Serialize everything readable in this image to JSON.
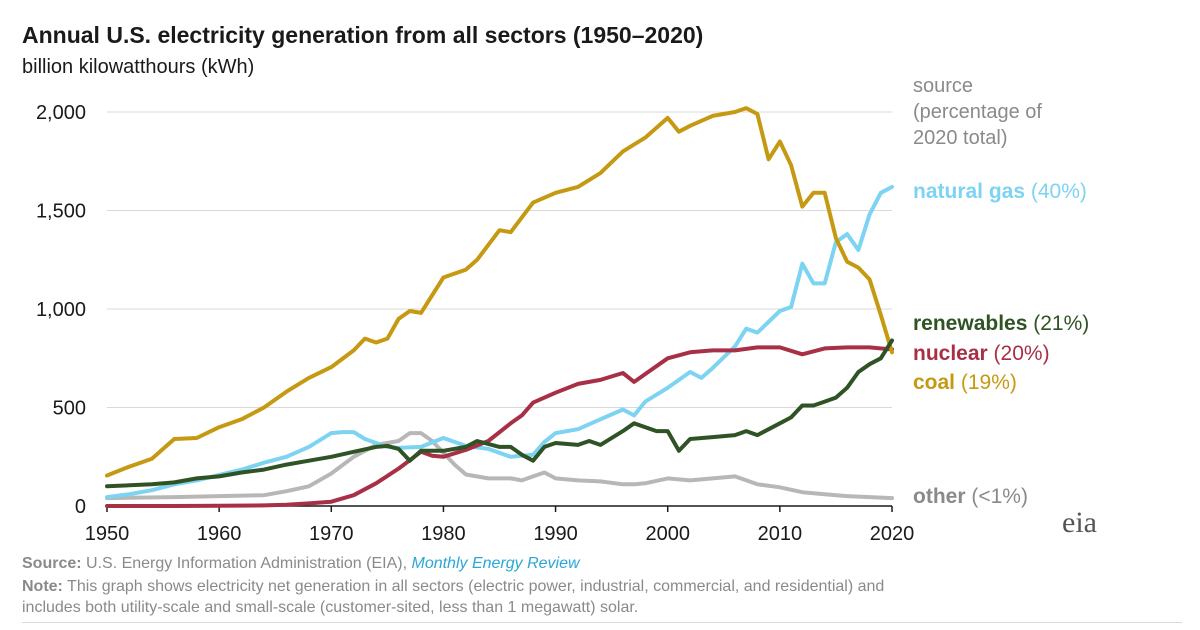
{
  "title": "Annual U.S. electricity generation from all sectors (1950–2020)",
  "subtitle": "billion kilowatthours (kWh)",
  "legend_header": [
    "source",
    "(percentage of",
    "2020 total)"
  ],
  "footer": {
    "source_label": "Source:",
    "source_text": " U.S. Energy Information Administration (EIA), ",
    "source_link": "Monthly Energy Review",
    "note_label": "Note:",
    "note_text_1": " This graph shows electricity net generation in all sectors (electric power, industrial, commercial, and residential) and",
    "note_text_2": "includes both utility-scale and small-scale (customer-sited, less than 1 megawatt) solar."
  },
  "logo": "eia",
  "chart_data": {
    "type": "line",
    "title": "Annual U.S. electricity generation from all sectors (1950–2020)",
    "ylabel": "billion kilowatthours (kWh)",
    "xlim": [
      1950,
      2020
    ],
    "ylim": [
      0,
      2000
    ],
    "xticks": [
      1950,
      1960,
      1970,
      1980,
      1990,
      2000,
      2010,
      2020
    ],
    "yticks": [
      0,
      500,
      1000,
      1500,
      2000
    ],
    "ytick_labels": [
      "0",
      "500",
      "1,000",
      "1,500",
      "2,000"
    ],
    "grid": "horizontal",
    "legend_placement": "right (inline labels)",
    "series": [
      {
        "name": "natural gas",
        "pct": "(40%)",
        "color": "#7dd3f2",
        "x": [
          1950,
          1952,
          1954,
          1956,
          1958,
          1960,
          1962,
          1964,
          1966,
          1968,
          1970,
          1971,
          1972,
          1973,
          1974,
          1975,
          1976,
          1978,
          1980,
          1982,
          1984,
          1986,
          1988,
          1989,
          1990,
          1992,
          1994,
          1996,
          1997,
          1998,
          2000,
          2002,
          2003,
          2004,
          2006,
          2007,
          2008,
          2010,
          2011,
          2012,
          2013,
          2014,
          2015,
          2016,
          2017,
          2018,
          2019,
          2020
        ],
        "y": [
          45,
          60,
          80,
          110,
          130,
          158,
          185,
          220,
          250,
          300,
          370,
          375,
          375,
          340,
          320,
          300,
          295,
          300,
          345,
          305,
          290,
          250,
          260,
          325,
          370,
          390,
          440,
          490,
          460,
          530,
          600,
          680,
          650,
          700,
          810,
          900,
          880,
          990,
          1010,
          1230,
          1130,
          1130,
          1340,
          1380,
          1300,
          1480,
          1590,
          1620
        ]
      },
      {
        "name": "renewables",
        "pct": "(21%)",
        "color": "#2f5324",
        "x": [
          1950,
          1952,
          1954,
          1956,
          1958,
          1960,
          1962,
          1964,
          1966,
          1968,
          1970,
          1972,
          1974,
          1975,
          1976,
          1977,
          1978,
          1980,
          1982,
          1983,
          1985,
          1986,
          1987,
          1988,
          1989,
          1990,
          1992,
          1993,
          1994,
          1996,
          1997,
          1999,
          2000,
          2001,
          2002,
          2004,
          2006,
          2007,
          2008,
          2010,
          2011,
          2012,
          2013,
          2014,
          2015,
          2016,
          2017,
          2018,
          2019,
          2020
        ],
        "y": [
          100,
          105,
          110,
          120,
          140,
          150,
          170,
          185,
          210,
          230,
          250,
          275,
          300,
          305,
          290,
          230,
          280,
          280,
          300,
          330,
          300,
          300,
          260,
          230,
          300,
          320,
          310,
          330,
          310,
          380,
          420,
          380,
          380,
          280,
          340,
          350,
          360,
          380,
          360,
          420,
          450,
          510,
          510,
          530,
          550,
          600,
          680,
          720,
          750,
          840
        ]
      },
      {
        "name": "nuclear",
        "pct": "(20%)",
        "color": "#a83046",
        "x": [
          1950,
          1956,
          1960,
          1964,
          1966,
          1968,
          1970,
          1972,
          1974,
          1976,
          1978,
          1979,
          1980,
          1982,
          1984,
          1986,
          1987,
          1988,
          1990,
          1992,
          1994,
          1996,
          1997,
          1998,
          2000,
          2002,
          2004,
          2006,
          2008,
          2010,
          2012,
          2014,
          2016,
          2018,
          2020
        ],
        "y": [
          0,
          0,
          1,
          3,
          6,
          13,
          22,
          55,
          115,
          190,
          275,
          255,
          250,
          285,
          330,
          420,
          460,
          525,
          575,
          620,
          640,
          675,
          630,
          670,
          750,
          780,
          790,
          790,
          805,
          805,
          770,
          800,
          805,
          805,
          795
        ]
      },
      {
        "name": "coal",
        "pct": "(19%)",
        "color": "#c59a12",
        "x": [
          1950,
          1952,
          1954,
          1956,
          1958,
          1960,
          1962,
          1964,
          1966,
          1968,
          1970,
          1972,
          1973,
          1974,
          1975,
          1976,
          1977,
          1978,
          1980,
          1982,
          1983,
          1985,
          1986,
          1988,
          1990,
          1992,
          1994,
          1996,
          1998,
          2000,
          2001,
          2002,
          2004,
          2006,
          2007,
          2008,
          2009,
          2010,
          2011,
          2012,
          2013,
          2014,
          2015,
          2016,
          2017,
          2018,
          2019,
          2020
        ],
        "y": [
          155,
          200,
          240,
          340,
          345,
          400,
          440,
          500,
          580,
          650,
          705,
          790,
          850,
          830,
          850,
          950,
          990,
          980,
          1160,
          1200,
          1250,
          1400,
          1390,
          1540,
          1590,
          1620,
          1690,
          1800,
          1870,
          1970,
          1900,
          1930,
          1980,
          2000,
          2020,
          1990,
          1760,
          1850,
          1730,
          1520,
          1590,
          1590,
          1360,
          1240,
          1210,
          1150,
          970,
          780
        ]
      },
      {
        "name": "other",
        "pct": "(<1%)",
        "color": "#b7b7b7",
        "x": [
          1950,
          1956,
          1960,
          1964,
          1966,
          1968,
          1970,
          1972,
          1974,
          1976,
          1977,
          1978,
          1979,
          1980,
          1981,
          1982,
          1984,
          1986,
          1987,
          1988,
          1989,
          1990,
          1992,
          1994,
          1996,
          1997,
          1998,
          2000,
          2002,
          2004,
          2006,
          2008,
          2010,
          2012,
          2014,
          2016,
          2018,
          2020
        ],
        "y": [
          40,
          45,
          50,
          55,
          75,
          100,
          165,
          250,
          310,
          330,
          370,
          370,
          330,
          270,
          210,
          160,
          140,
          140,
          130,
          150,
          170,
          140,
          130,
          125,
          110,
          110,
          115,
          140,
          130,
          140,
          150,
          110,
          95,
          70,
          60,
          50,
          45,
          40
        ]
      }
    ]
  }
}
